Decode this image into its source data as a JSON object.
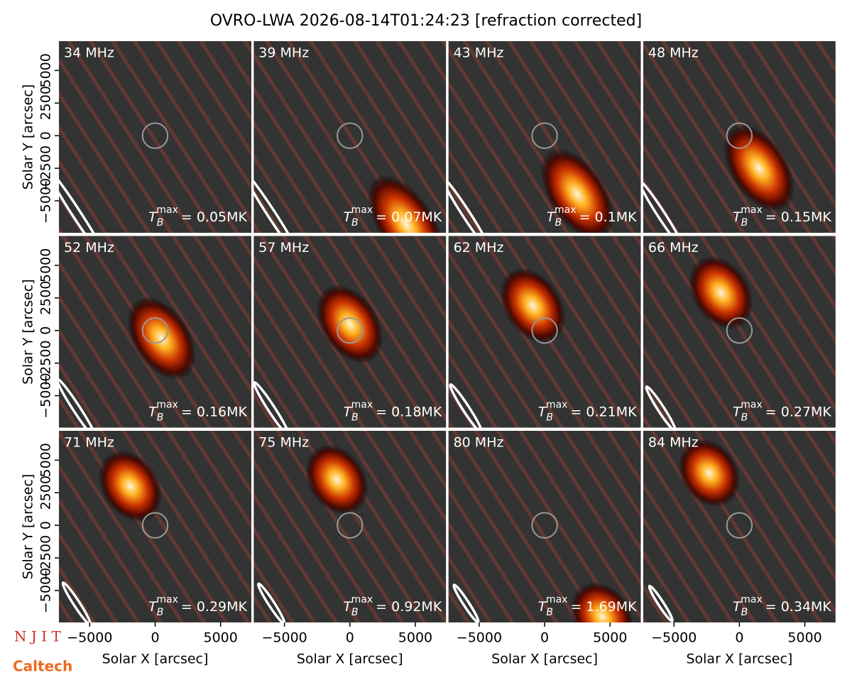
{
  "chart_data": {
    "type": "image-grid",
    "title": "OVRO-LWA 2026-08-14T01:24:23 [refraction corrected]",
    "xlabel": "Solar X [arcsec]",
    "ylabel": "Solar Y [arcsec]",
    "xlim": [
      -7350,
      7350
    ],
    "ylim": [
      -7450,
      7250
    ],
    "xticks": [
      {
        "value": -5000,
        "label": "−5000"
      },
      0,
      5000
    ],
    "yticks": [
      {
        "value": -5000,
        "label": "−5000"
      },
      {
        "value": -2500,
        "label": "−2500"
      },
      0,
      2500,
      5000
    ],
    "sun_radius": 960,
    "beam_center": [
      -6000,
      -6000
    ],
    "beam_angle": 57,
    "tb_symbol": "T",
    "tb_sub": "B",
    "tb_sup": "max",
    "panels": [
      {
        "label": "34 MHz",
        "tb_label": "= 0.05MK",
        "peak": null,
        "beam_major": 4200,
        "beam_minor": 320
      },
      {
        "label": "39 MHz",
        "tb_label": "= 0.07MK",
        "peak": [
          4300,
          -6800
        ],
        "beam_major": 3800,
        "beam_minor": 300
      },
      {
        "label": "43 MHz",
        "tb_label": "= 0.1MK",
        "peak": [
          2500,
          -4500
        ],
        "beam_major": 3300,
        "beam_minor": 290
      },
      {
        "label": "48 MHz",
        "tb_label": "= 0.15MK",
        "peak": [
          1500,
          -2500
        ],
        "beam_major": 3000,
        "beam_minor": 280
      },
      {
        "label": "52 MHz",
        "tb_label": "= 0.16MK",
        "peak": [
          500,
          -600
        ],
        "beam_major": 2700,
        "beam_minor": 270
      },
      {
        "label": "57 MHz",
        "tb_label": "= 0.18MK",
        "peak": [
          0,
          500
        ],
        "beam_major": 2400,
        "beam_minor": 260
      },
      {
        "label": "62 MHz",
        "tb_label": "= 0.21MK",
        "peak": [
          -900,
          1900
        ],
        "beam_major": 2200,
        "beam_minor": 250
      },
      {
        "label": "66 MHz",
        "tb_label": "= 0.27MK",
        "peak": [
          -1400,
          2900
        ],
        "beam_major": 2000,
        "beam_minor": 240
      },
      {
        "label": "71 MHz",
        "tb_label": "= 0.29MK",
        "peak": [
          -1900,
          3000
        ],
        "beam_major": 1900,
        "beam_minor": 230
      },
      {
        "label": "75 MHz",
        "tb_label": "= 0.92MK",
        "peak": [
          -1000,
          3500
        ],
        "beam_major": 1800,
        "beam_minor": 220
      },
      {
        "label": "80 MHz",
        "tb_label": "= 1.69MK",
        "peak": [
          4400,
          -7000
        ],
        "beam_major": 1700,
        "beam_minor": 210
      },
      {
        "label": "84 MHz",
        "tb_label": "= 0.34MK",
        "peak": [
          -2300,
          4000
        ],
        "beam_major": 1600,
        "beam_minor": 200
      }
    ],
    "logos": [
      "N J I T",
      "Caltech"
    ]
  }
}
